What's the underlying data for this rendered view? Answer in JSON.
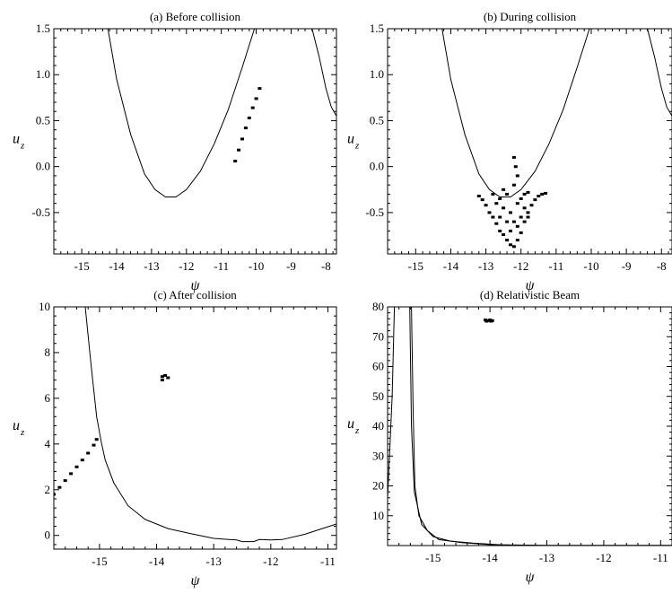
{
  "figure": {
    "panels": [
      {
        "id": "a",
        "title": "(a) Before collision",
        "xlabel": "ψ",
        "ylabel_main": "u",
        "ylabel_sub": "z",
        "xlim": [
          -15.8,
          -7.7
        ],
        "ylim": [
          -0.95,
          1.5
        ],
        "xticks": [
          {
            "v": -15,
            "label": "-15"
          },
          {
            "v": -14,
            "label": "-14"
          },
          {
            "v": -13,
            "label": "-13"
          },
          {
            "v": -12,
            "label": "-12"
          },
          {
            "v": -11,
            "label": "-11"
          },
          {
            "v": -10,
            "label": "-10"
          },
          {
            "v": -9,
            "label": "-9"
          },
          {
            "v": -8,
            "label": "-8"
          }
        ],
        "yticks": [
          {
            "v": -0.5,
            "label": "-0.5"
          },
          {
            "v": 0,
            "label": "0.0"
          },
          {
            "v": 0.5,
            "label": "0.5"
          },
          {
            "v": 1,
            "label": "1.0"
          },
          {
            "v": 1.5,
            "label": "1.5"
          }
        ]
      },
      {
        "id": "b",
        "title": "(b) During collision",
        "xlabel": "ψ",
        "ylabel_main": "u",
        "ylabel_sub": "z",
        "xlim": [
          -15.8,
          -7.7
        ],
        "ylim": [
          -0.95,
          1.5
        ],
        "xticks": [
          {
            "v": -15,
            "label": "-15"
          },
          {
            "v": -14,
            "label": "-14"
          },
          {
            "v": -13,
            "label": "-13"
          },
          {
            "v": -12,
            "label": "-12"
          },
          {
            "v": -11,
            "label": "-11"
          },
          {
            "v": -10,
            "label": "-10"
          },
          {
            "v": -9,
            "label": "-9"
          },
          {
            "v": -8,
            "label": "-8"
          }
        ],
        "yticks": [
          {
            "v": -0.5,
            "label": "-0.5"
          },
          {
            "v": 0,
            "label": "0.0"
          },
          {
            "v": 0.5,
            "label": "0.5"
          },
          {
            "v": 1,
            "label": "1.0"
          },
          {
            "v": 1.5,
            "label": "1.5"
          }
        ]
      },
      {
        "id": "c",
        "title": "(c) After collision",
        "xlabel": "ψ",
        "ylabel_main": "u",
        "ylabel_sub": "z",
        "xlim": [
          -15.8,
          -10.85
        ],
        "ylim": [
          -0.6,
          10
        ],
        "xticks": [
          {
            "v": -15,
            "label": "-15"
          },
          {
            "v": -14,
            "label": "-14"
          },
          {
            "v": -13,
            "label": "-13"
          },
          {
            "v": -12,
            "label": "-12"
          },
          {
            "v": -11,
            "label": "-11"
          }
        ],
        "yticks": [
          {
            "v": 0,
            "label": "0"
          },
          {
            "v": 2,
            "label": "2"
          },
          {
            "v": 4,
            "label": "4"
          },
          {
            "v": 6,
            "label": "6"
          },
          {
            "v": 8,
            "label": "8"
          },
          {
            "v": 10,
            "label": "10"
          }
        ]
      },
      {
        "id": "d",
        "title": "(d) Relativistic Beam",
        "xlabel": "ψ",
        "ylabel_main": "u",
        "ylabel_sub": "z",
        "xlim": [
          -15.8,
          -10.8
        ],
        "ylim": [
          0,
          80
        ],
        "xticks": [
          {
            "v": -15,
            "label": "-15"
          },
          {
            "v": -14,
            "label": "-14"
          },
          {
            "v": -13,
            "label": "-13"
          },
          {
            "v": -12,
            "label": "-12"
          },
          {
            "v": -11,
            "label": "-11"
          }
        ],
        "yticks": [
          {
            "v": 10,
            "label": "10"
          },
          {
            "v": 20,
            "label": "20"
          },
          {
            "v": 30,
            "label": "30"
          },
          {
            "v": 40,
            "label": "40"
          },
          {
            "v": 50,
            "label": "50"
          },
          {
            "v": 60,
            "label": "60"
          },
          {
            "v": 70,
            "label": "70"
          },
          {
            "v": 80,
            "label": "80"
          }
        ]
      }
    ]
  },
  "chart_data": [
    {
      "type": "line",
      "title": "(a) Before collision",
      "xlabel": "ψ",
      "ylabel": "u_z",
      "xlim": [
        -15.8,
        -7.7
      ],
      "ylim": [
        -0.95,
        1.5
      ],
      "grid": false,
      "series": [
        {
          "kind": "line",
          "points": [
            [
              -14.25,
              1.5
            ],
            [
              -14.0,
              0.95
            ],
            [
              -13.6,
              0.35
            ],
            [
              -13.2,
              -0.08
            ],
            [
              -12.9,
              -0.25
            ],
            [
              -12.6,
              -0.33
            ],
            [
              -12.3,
              -0.33
            ],
            [
              -12.0,
              -0.25
            ],
            [
              -11.6,
              -0.05
            ],
            [
              -11.2,
              0.25
            ],
            [
              -10.8,
              0.62
            ],
            [
              -10.4,
              1.08
            ],
            [
              -10.05,
              1.5
            ]
          ]
        },
        {
          "kind": "line",
          "points": [
            [
              -8.4,
              1.5
            ],
            [
              -8.2,
              1.2
            ],
            [
              -8.0,
              0.85
            ],
            [
              -7.85,
              0.65
            ],
            [
              -7.7,
              0.55
            ]
          ]
        },
        {
          "kind": "scatter",
          "points": [
            [
              -10.6,
              0.06
            ],
            [
              -10.5,
              0.18
            ],
            [
              -10.4,
              0.3
            ],
            [
              -10.3,
              0.42
            ],
            [
              -10.2,
              0.53
            ],
            [
              -10.1,
              0.64
            ],
            [
              -10.0,
              0.74
            ],
            [
              -9.9,
              0.85
            ]
          ]
        }
      ]
    },
    {
      "type": "line",
      "title": "(b) During collision",
      "xlabel": "ψ",
      "ylabel": "u_z",
      "xlim": [
        -15.8,
        -7.7
      ],
      "ylim": [
        -0.95,
        1.5
      ],
      "grid": false,
      "series": [
        {
          "kind": "line",
          "points": [
            [
              -14.25,
              1.5
            ],
            [
              -14.0,
              0.95
            ],
            [
              -13.6,
              0.35
            ],
            [
              -13.2,
              -0.08
            ],
            [
              -12.9,
              -0.25
            ],
            [
              -12.6,
              -0.33
            ],
            [
              -12.3,
              -0.33
            ],
            [
              -12.0,
              -0.25
            ],
            [
              -11.6,
              -0.05
            ],
            [
              -11.2,
              0.25
            ],
            [
              -10.8,
              0.62
            ],
            [
              -10.4,
              1.08
            ],
            [
              -10.05,
              1.5
            ]
          ]
        },
        {
          "kind": "line",
          "points": [
            [
              -8.4,
              1.5
            ],
            [
              -8.2,
              1.2
            ],
            [
              -8.0,
              0.85
            ],
            [
              -7.85,
              0.65
            ],
            [
              -7.7,
              0.55
            ]
          ]
        },
        {
          "kind": "scatter",
          "points": [
            [
              -13.2,
              -0.32
            ],
            [
              -13.1,
              -0.36
            ],
            [
              -13.0,
              -0.42
            ],
            [
              -12.9,
              -0.5
            ],
            [
              -12.8,
              -0.55
            ],
            [
              -12.7,
              -0.62
            ],
            [
              -12.6,
              -0.7
            ],
            [
              -12.5,
              -0.74
            ],
            [
              -12.4,
              -0.8
            ],
            [
              -12.3,
              -0.85
            ],
            [
              -12.2,
              -0.87
            ],
            [
              -12.1,
              -0.8
            ],
            [
              -12.0,
              -0.72
            ],
            [
              -11.9,
              -0.6
            ],
            [
              -11.8,
              -0.5
            ],
            [
              -11.7,
              -0.42
            ],
            [
              -11.6,
              -0.36
            ],
            [
              -11.5,
              -0.32
            ],
            [
              -11.4,
              -0.3
            ],
            [
              -11.3,
              -0.29
            ],
            [
              -12.8,
              -0.3
            ],
            [
              -12.7,
              -0.4
            ],
            [
              -12.6,
              -0.35
            ],
            [
              -12.5,
              -0.45
            ],
            [
              -12.4,
              -0.3
            ],
            [
              -12.3,
              -0.5
            ],
            [
              -12.2,
              -0.2
            ],
            [
              -12.1,
              -0.4
            ],
            [
              -12.0,
              -0.35
            ],
            [
              -11.9,
              -0.3
            ],
            [
              -11.8,
              -0.28
            ],
            [
              -12.2,
              0.1
            ],
            [
              -12.15,
              0.0
            ],
            [
              -12.1,
              -0.1
            ],
            [
              -12.2,
              -0.6
            ],
            [
              -12.4,
              -0.6
            ],
            [
              -12.0,
              -0.55
            ],
            [
              -12.6,
              -0.55
            ],
            [
              -11.8,
              -0.55
            ],
            [
              -12.3,
              -0.7
            ],
            [
              -12.1,
              -0.65
            ],
            [
              -12.5,
              -0.25
            ],
            [
              -11.9,
              -0.45
            ]
          ]
        }
      ]
    },
    {
      "type": "line",
      "title": "(c) After collision",
      "xlabel": "ψ",
      "ylabel": "u_z",
      "xlim": [
        -15.8,
        -10.85
      ],
      "ylim": [
        -0.6,
        10
      ],
      "grid": false,
      "series": [
        {
          "kind": "line",
          "points": [
            [
              -15.25,
              10
            ],
            [
              -15.15,
              7.5
            ],
            [
              -15.05,
              5.2
            ],
            [
              -14.97,
              4.1
            ],
            [
              -14.9,
              3.3
            ],
            [
              -14.75,
              2.3
            ],
            [
              -14.5,
              1.3
            ],
            [
              -14.2,
              0.7
            ],
            [
              -13.8,
              0.3
            ],
            [
              -13.4,
              0.08
            ],
            [
              -13.0,
              -0.13
            ],
            [
              -12.6,
              -0.2
            ],
            [
              -12.5,
              -0.27
            ],
            [
              -12.3,
              -0.27
            ],
            [
              -12.2,
              -0.18
            ],
            [
              -12.0,
              -0.2
            ],
            [
              -11.8,
              -0.18
            ],
            [
              -11.4,
              0.05
            ],
            [
              -11.1,
              0.3
            ],
            [
              -10.85,
              0.5
            ]
          ]
        },
        {
          "kind": "scatter",
          "points": [
            [
              -15.8,
              1.8
            ],
            [
              -15.7,
              2.1
            ],
            [
              -15.6,
              2.4
            ],
            [
              -15.5,
              2.7
            ],
            [
              -15.4,
              3.0
            ],
            [
              -15.3,
              3.3
            ],
            [
              -15.2,
              3.6
            ],
            [
              -15.1,
              3.95
            ],
            [
              -15.05,
              4.2
            ],
            [
              -13.9,
              6.8
            ],
            [
              -13.85,
              7.0
            ],
            [
              -13.8,
              6.9
            ],
            [
              -13.9,
              6.95
            ]
          ]
        }
      ]
    },
    {
      "type": "line",
      "title": "(d) Relativistic Beam",
      "xlabel": "ψ",
      "ylabel": "u_z",
      "xlim": [
        -15.8,
        -10.8
      ],
      "ylim": [
        0,
        80
      ],
      "grid": false,
      "series": [
        {
          "kind": "line",
          "points": [
            [
              -15.8,
              16
            ],
            [
              -15.72,
              50
            ],
            [
              -15.68,
              80
            ]
          ]
        },
        {
          "kind": "line",
          "points": [
            [
              -15.38,
              80
            ],
            [
              -15.35,
              45
            ],
            [
              -15.32,
              20
            ],
            [
              -15.25,
              10
            ],
            [
              -15.1,
              5
            ],
            [
              -14.9,
              2
            ],
            [
              -14.5,
              1
            ],
            [
              -14.0,
              0.3
            ],
            [
              -13.0,
              0.1
            ],
            [
              -12.0,
              0.05
            ],
            [
              -10.8,
              0.05
            ]
          ]
        },
        {
          "kind": "line",
          "points": [
            [
              -15.41,
              80
            ],
            [
              -15.38,
              40
            ],
            [
              -15.33,
              18
            ],
            [
              -15.2,
              7
            ],
            [
              -15.0,
              3
            ],
            [
              -14.7,
              1.5
            ],
            [
              -14.3,
              0.8
            ],
            [
              -13.8,
              0.2
            ]
          ]
        },
        {
          "kind": "scatter",
          "points": [
            [
              -14.08,
              75.6
            ],
            [
              -14.04,
              75.4
            ],
            [
              -14.0,
              75.6
            ],
            [
              -13.96,
              75.4
            ],
            [
              -14.06,
              75.2
            ],
            [
              -13.98,
              75.2
            ]
          ]
        }
      ]
    }
  ]
}
